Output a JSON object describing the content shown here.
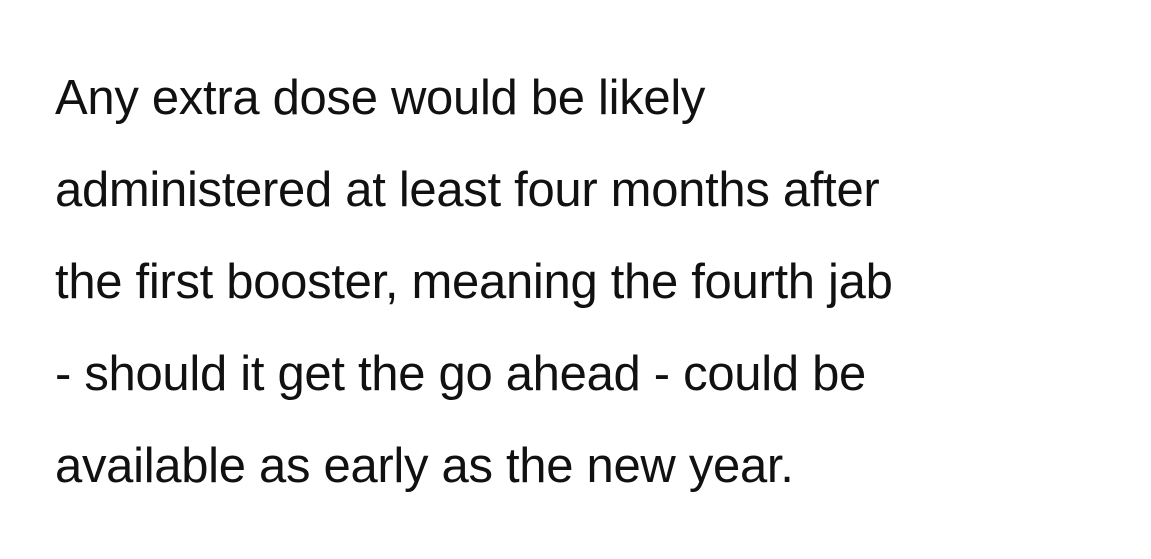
{
  "article": {
    "lines": [
      "Any extra dose would be likely",
      "administered at least four months after",
      "the first booster, meaning the fourth jab",
      "- should it get the go ahead - could be",
      "available as early as the new year."
    ]
  }
}
